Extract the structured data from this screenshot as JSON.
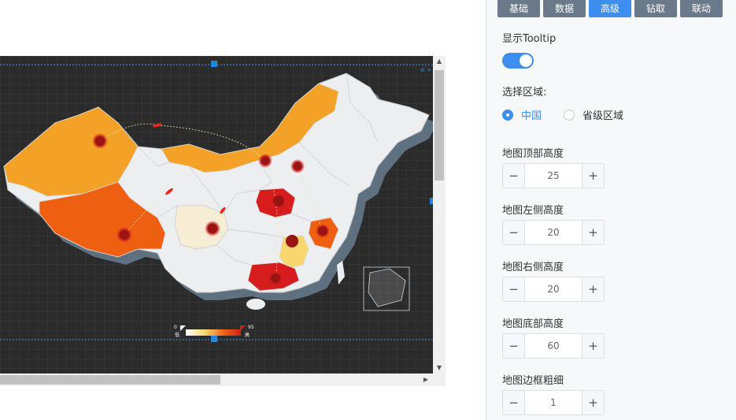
{
  "tabs": [
    {
      "label": "基础",
      "active": false
    },
    {
      "label": "数据",
      "active": false
    },
    {
      "label": "高级",
      "active": true
    },
    {
      "label": "钻取",
      "active": false
    },
    {
      "label": "联动",
      "active": false
    }
  ],
  "settings": {
    "show_tooltip_label": "显示Tooltip",
    "show_tooltip_on": true,
    "region_label": "选择区域:",
    "region_options": [
      "中国",
      "省级区域"
    ],
    "region_selected": "中国",
    "steppers": [
      {
        "label": "地图顶部高度",
        "value": "25"
      },
      {
        "label": "地图左侧高度",
        "value": "20"
      },
      {
        "label": "地图右侧高度",
        "value": "20"
      },
      {
        "label": "地图底部高度",
        "value": "60"
      },
      {
        "label": "地图边框粗细",
        "value": "1"
      }
    ]
  },
  "map": {
    "legend_min": "0",
    "legend_max": "95",
    "legend_low_text": "低",
    "legend_high_text": "高",
    "colors": {
      "background": "#2b2b2b",
      "grid": "#3d3d3d",
      "land": "#eceeef",
      "land_shadow": "#5f7180",
      "orange_light": "#f4a127",
      "orange_dark": "#ef5f12",
      "pale": "#f7ecd4",
      "yellow": "#f9d76e",
      "red": "#d61c1c",
      "selection_line": "#3c8ef0",
      "handle": "#1e88e5"
    }
  }
}
